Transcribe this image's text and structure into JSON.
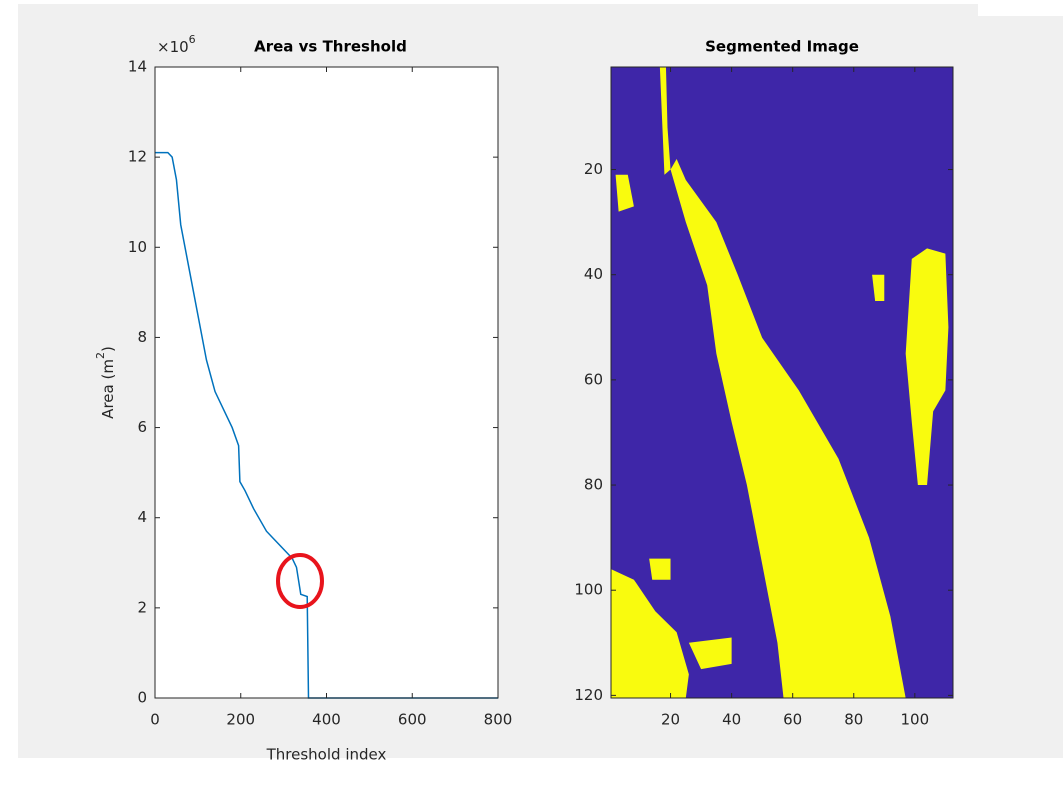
{
  "chart_data": [
    {
      "type": "line",
      "title": "Area vs Threshold",
      "exponent": {
        "base": "×10",
        "power": "6"
      },
      "xlabel": "Threshold index",
      "ylabel": {
        "text": "Area (m",
        "sup": "2",
        "end": ")"
      },
      "color": "#0072bd",
      "x": [
        0,
        30,
        40,
        50,
        60,
        80,
        100,
        120,
        140,
        160,
        180,
        195,
        198,
        210,
        230,
        260,
        280,
        300,
        320,
        330,
        340,
        355,
        358,
        800
      ],
      "y": [
        12.1,
        12.1,
        12.0,
        11.5,
        10.5,
        9.5,
        8.5,
        7.5,
        6.8,
        6.4,
        6.0,
        5.6,
        4.8,
        4.6,
        4.2,
        3.7,
        3.5,
        3.3,
        3.1,
        2.9,
        2.3,
        2.25,
        0,
        0
      ],
      "xlim": [
        0,
        800
      ],
      "xticks": [
        0,
        200,
        400,
        600,
        800
      ],
      "ylim": [
        0,
        14
      ],
      "yticks": [
        0,
        2,
        4,
        6,
        8,
        10,
        12,
        14
      ]
    },
    {
      "type": "image",
      "title": "Segmented Image",
      "background": "#3e26a8",
      "color": "#f9fb0e",
      "xlim": [
        0.5,
        112.5
      ],
      "xticks": [
        20,
        40,
        60,
        80,
        100
      ],
      "ylim": [
        0.5,
        120.5
      ],
      "yticks": [
        20,
        40,
        60,
        80,
        100,
        120
      ],
      "regions": [
        [
          [
            20,
            20
          ],
          [
            25,
            30
          ],
          [
            32,
            42
          ],
          [
            35,
            55
          ],
          [
            40,
            68
          ],
          [
            45,
            80
          ],
          [
            50,
            95
          ],
          [
            55,
            110
          ],
          [
            57,
            120.5
          ],
          [
            97,
            120.5
          ],
          [
            92,
            105
          ],
          [
            85,
            90
          ],
          [
            75,
            75
          ],
          [
            62,
            62
          ],
          [
            50,
            52
          ],
          [
            42,
            40
          ],
          [
            35,
            30
          ],
          [
            25,
            22
          ],
          [
            22,
            18
          ]
        ],
        [
          [
            16.5,
            0.5
          ],
          [
            18.5,
            0.5
          ],
          [
            19,
            12
          ],
          [
            20,
            20
          ],
          [
            18,
            21
          ]
        ],
        [
          [
            99,
            37
          ],
          [
            104,
            35
          ],
          [
            110,
            36
          ],
          [
            111,
            50
          ],
          [
            110,
            62
          ],
          [
            106,
            66
          ],
          [
            104,
            80
          ],
          [
            101,
            80
          ],
          [
            99,
            68
          ],
          [
            97,
            55
          ]
        ],
        [
          [
            0.5,
            96
          ],
          [
            8,
            98
          ],
          [
            15,
            104
          ],
          [
            22,
            108
          ],
          [
            26,
            116
          ],
          [
            25,
            120.5
          ],
          [
            0.5,
            120.5
          ]
        ],
        [
          [
            2,
            21
          ],
          [
            6,
            21
          ],
          [
            8,
            27
          ],
          [
            3,
            28
          ]
        ],
        [
          [
            13,
            94
          ],
          [
            20,
            94
          ],
          [
            20,
            98
          ],
          [
            14,
            98
          ]
        ],
        [
          [
            86,
            40
          ],
          [
            90,
            40
          ],
          [
            90,
            45
          ],
          [
            87,
            45
          ]
        ],
        [
          [
            26,
            110
          ],
          [
            40,
            109
          ],
          [
            40,
            114
          ],
          [
            30,
            115
          ]
        ]
      ]
    }
  ]
}
